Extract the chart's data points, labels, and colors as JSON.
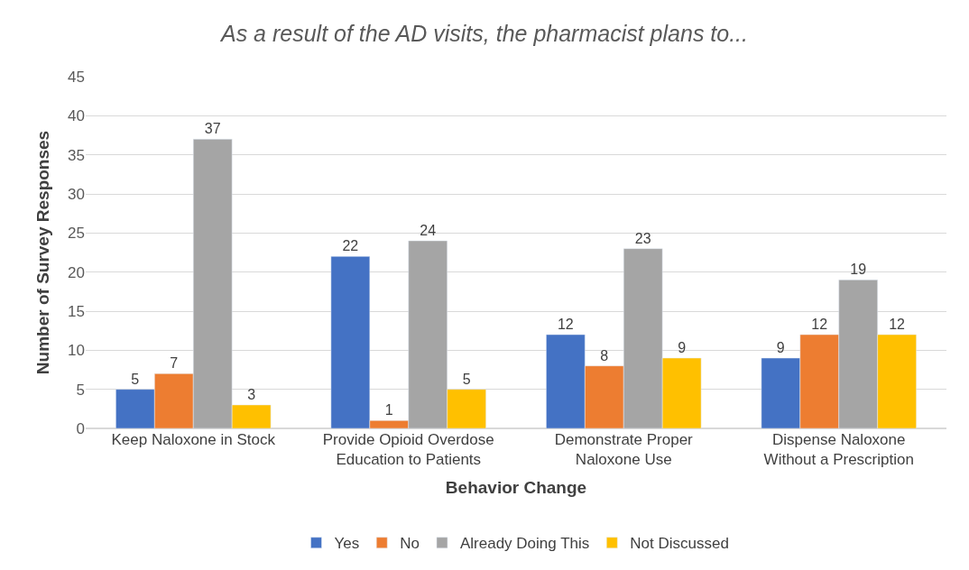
{
  "chart_data": {
    "type": "bar",
    "title": "As a result of the AD visits, the pharmacist plans to...",
    "xlabel": "Behavior Change",
    "ylabel": "Number of Survey Responses",
    "categories": [
      "Keep Naloxone in Stock",
      "Provide Opioid Overdose Education to Patients",
      "Demonstrate Proper Naloxone Use",
      "Dispense Naloxone Without a Prescription"
    ],
    "series": [
      {
        "name": "Yes",
        "color": "#4472c4",
        "values": [
          5,
          22,
          12,
          9
        ]
      },
      {
        "name": "No",
        "color": "#ed7d31",
        "values": [
          7,
          1,
          8,
          12
        ]
      },
      {
        "name": "Already Doing This",
        "color": "#a5a5a5",
        "values": [
          37,
          24,
          23,
          19
        ]
      },
      {
        "name": "Not Discussed",
        "color": "#ffc000",
        "values": [
          3,
          5,
          9,
          12
        ]
      }
    ],
    "ylim": [
      0,
      45
    ],
    "yticks": [
      0,
      5,
      10,
      15,
      20,
      25,
      30,
      35,
      40,
      45
    ],
    "grid": "y",
    "legend": "bottom",
    "data_labels": true
  }
}
